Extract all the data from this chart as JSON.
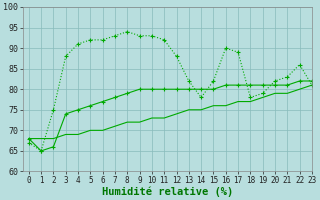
{
  "line1_x": [
    0,
    1,
    2,
    3,
    4,
    5,
    6,
    7,
    8,
    9,
    10,
    11,
    12,
    13,
    14,
    15,
    16,
    17,
    18,
    19,
    20,
    21,
    22,
    23
  ],
  "line1_y": [
    67,
    65,
    75,
    88,
    91,
    92,
    92,
    93,
    94,
    93,
    93,
    92,
    88,
    82,
    78,
    82,
    90,
    89,
    78,
    79,
    82,
    83,
    86,
    81
  ],
  "line2_x": [
    0,
    1,
    2,
    3,
    4,
    5,
    6,
    7,
    8,
    9,
    10,
    11,
    12,
    13,
    14,
    15,
    16,
    17,
    18,
    19,
    20,
    21,
    22,
    23
  ],
  "line2_y": [
    68,
    65,
    66,
    74,
    75,
    76,
    77,
    78,
    79,
    80,
    80,
    80,
    80,
    80,
    80,
    80,
    81,
    81,
    81,
    81,
    81,
    81,
    82,
    82
  ],
  "line3_x": [
    0,
    1,
    2,
    3,
    4,
    5,
    6,
    7,
    8,
    9,
    10,
    11,
    12,
    13,
    14,
    15,
    16,
    17,
    18,
    19,
    20,
    21,
    22,
    23
  ],
  "line3_y": [
    68,
    68,
    68,
    69,
    69,
    70,
    70,
    71,
    72,
    72,
    73,
    73,
    74,
    75,
    75,
    76,
    76,
    77,
    77,
    78,
    79,
    79,
    80,
    81
  ],
  "line_color": "#00aa00",
  "bg_color": "#b8dede",
  "grid_color": "#88bbbb",
  "xlabel": "Humidité relative (%)",
  "xlabel_color": "#007700",
  "xlabel_fontsize": 7.5,
  "ylim": [
    60,
    100
  ],
  "xlim": [
    -0.5,
    23
  ],
  "yticks": [
    60,
    65,
    70,
    75,
    80,
    85,
    90,
    95,
    100
  ],
  "xticks": [
    0,
    1,
    2,
    3,
    4,
    5,
    6,
    7,
    8,
    9,
    10,
    11,
    12,
    13,
    14,
    15,
    16,
    17,
    18,
    19,
    20,
    21,
    22,
    23
  ]
}
